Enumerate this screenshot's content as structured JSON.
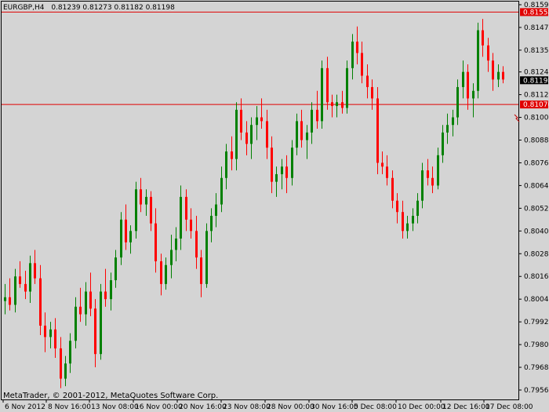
{
  "header": {
    "symbol": "EURGBP,H4",
    "ohlc": "0.81239 0.81273 0.81182 0.81198"
  },
  "copyright": "MetaTrader, © 2001-2012, MetaQuotes Software Corp.",
  "colors": {
    "background": "#d4d4d4",
    "bull": "#008000",
    "bear": "#ff0000",
    "line": "#e00000",
    "axis": "#000000",
    "price_tag": "#000000",
    "level_tag": "#e00000"
  },
  "chart_data": {
    "type": "candlestick",
    "symbol": "EURGBP",
    "timeframe": "H4",
    "ylim": [
      0.7956,
      0.81595
    ],
    "yticks": [
      "0.81595",
      "0.81475",
      "0.81355",
      "0.81240",
      "0.81120",
      "0.81000",
      "0.80880",
      "0.80760",
      "0.80640",
      "0.80520",
      "0.80400",
      "0.80280",
      "0.80160",
      "0.80040",
      "0.79920",
      "0.79800",
      "0.79680",
      "0.79560"
    ],
    "xticks": [
      "6 Nov 2012",
      "8 Nov 16:00",
      "13 Nov 08:00",
      "16 Nov 00:00",
      "20 Nov 16:00",
      "23 Nov 08:00",
      "28 Nov 00:00",
      "30 Nov 16:00",
      "5 Dec 08:00",
      "10 Dec 00:00",
      "12 Dec 16:00",
      "17 Dec 08:00"
    ],
    "current_price": "0.81198",
    "horizontal_lines": [
      {
        "price": "0.81558"
      },
      {
        "price": "0.81070"
      }
    ],
    "candles": [
      [
        0.8003,
        0.8012,
        0.7996,
        0.8005
      ],
      [
        0.8005,
        0.8015,
        0.7998,
        0.8001
      ],
      [
        0.8001,
        0.802,
        0.7997,
        0.8016
      ],
      [
        0.8016,
        0.8024,
        0.801,
        0.8012
      ],
      [
        0.8012,
        0.8019,
        0.8004,
        0.8008
      ],
      [
        0.8008,
        0.8027,
        0.8002,
        0.8023
      ],
      [
        0.8023,
        0.803,
        0.8012,
        0.8015
      ],
      [
        0.8015,
        0.8022,
        0.7985,
        0.799
      ],
      [
        0.799,
        0.7997,
        0.7976,
        0.7984
      ],
      [
        0.7984,
        0.7992,
        0.7978,
        0.7988
      ],
      [
        0.7988,
        0.7994,
        0.7973,
        0.7978
      ],
      [
        0.7978,
        0.7984,
        0.7957,
        0.7962
      ],
      [
        0.7962,
        0.7974,
        0.7958,
        0.797
      ],
      [
        0.797,
        0.7986,
        0.7965,
        0.7982
      ],
      [
        0.7982,
        0.8005,
        0.7978,
        0.8
      ],
      [
        0.8,
        0.801,
        0.7992,
        0.7996
      ],
      [
        0.7996,
        0.8013,
        0.799,
        0.8008
      ],
      [
        0.8008,
        0.8018,
        0.7995,
        0.7999
      ],
      [
        0.7999,
        0.8004,
        0.7968,
        0.7975
      ],
      [
        0.7975,
        0.8012,
        0.7972,
        0.8008
      ],
      [
        0.8008,
        0.802,
        0.8,
        0.8004
      ],
      [
        0.8004,
        0.8018,
        0.7998,
        0.8014
      ],
      [
        0.8014,
        0.803,
        0.801,
        0.8026
      ],
      [
        0.8026,
        0.805,
        0.8022,
        0.8046
      ],
      [
        0.8046,
        0.8054,
        0.803,
        0.8034
      ],
      [
        0.8034,
        0.8043,
        0.8028,
        0.804
      ],
      [
        0.804,
        0.8066,
        0.8036,
        0.8062
      ],
      [
        0.8062,
        0.8068,
        0.805,
        0.8054
      ],
      [
        0.8054,
        0.8062,
        0.8048,
        0.8058
      ],
      [
        0.8058,
        0.8061,
        0.804,
        0.8044
      ],
      [
        0.8044,
        0.8052,
        0.8018,
        0.8024
      ],
      [
        0.8024,
        0.8028,
        0.8006,
        0.8012
      ],
      [
        0.8012,
        0.8026,
        0.8009,
        0.8022
      ],
      [
        0.8022,
        0.8038,
        0.8015,
        0.803
      ],
      [
        0.803,
        0.8042,
        0.8024,
        0.8036
      ],
      [
        0.8036,
        0.8064,
        0.803,
        0.8058
      ],
      [
        0.8058,
        0.8062,
        0.804,
        0.8046
      ],
      [
        0.8046,
        0.8052,
        0.8036,
        0.804
      ],
      [
        0.804,
        0.8048,
        0.802,
        0.8026
      ],
      [
        0.8026,
        0.803,
        0.8005,
        0.8012
      ],
      [
        0.8012,
        0.8044,
        0.801,
        0.804
      ],
      [
        0.804,
        0.8052,
        0.8034,
        0.8048
      ],
      [
        0.8048,
        0.806,
        0.8042,
        0.8054
      ],
      [
        0.8054,
        0.8074,
        0.805,
        0.8068
      ],
      [
        0.8068,
        0.8086,
        0.8062,
        0.8082
      ],
      [
        0.8082,
        0.809,
        0.8072,
        0.8078
      ],
      [
        0.8078,
        0.8108,
        0.8072,
        0.8104
      ],
      [
        0.8104,
        0.811,
        0.8088,
        0.8092
      ],
      [
        0.8092,
        0.8098,
        0.808,
        0.8086
      ],
      [
        0.8086,
        0.81,
        0.8078,
        0.8096
      ],
      [
        0.8096,
        0.8106,
        0.8088,
        0.81
      ],
      [
        0.81,
        0.811,
        0.8094,
        0.8098
      ],
      [
        0.8098,
        0.8104,
        0.8078,
        0.8084
      ],
      [
        0.8084,
        0.809,
        0.806,
        0.8066
      ],
      [
        0.8066,
        0.8074,
        0.8058,
        0.807
      ],
      [
        0.807,
        0.8078,
        0.8062,
        0.8074
      ],
      [
        0.8074,
        0.808,
        0.806,
        0.8068
      ],
      [
        0.8068,
        0.8088,
        0.8064,
        0.8084
      ],
      [
        0.8084,
        0.8102,
        0.808,
        0.8098
      ],
      [
        0.8098,
        0.8104,
        0.8084,
        0.8088
      ],
      [
        0.8088,
        0.8096,
        0.8078,
        0.8092
      ],
      [
        0.8092,
        0.8108,
        0.8086,
        0.8104
      ],
      [
        0.8104,
        0.8114,
        0.8094,
        0.8098
      ],
      [
        0.8098,
        0.813,
        0.8094,
        0.8126
      ],
      [
        0.8126,
        0.8132,
        0.8104,
        0.8108
      ],
      [
        0.8108,
        0.8112,
        0.81,
        0.8106
      ],
      [
        0.8106,
        0.8112,
        0.81,
        0.8108
      ],
      [
        0.8108,
        0.8114,
        0.8102,
        0.8105
      ],
      [
        0.8105,
        0.813,
        0.8102,
        0.8126
      ],
      [
        0.8126,
        0.8144,
        0.812,
        0.814
      ],
      [
        0.814,
        0.8148,
        0.8128,
        0.8134
      ],
      [
        0.8134,
        0.814,
        0.8118,
        0.8122
      ],
      [
        0.8122,
        0.8128,
        0.811,
        0.8116
      ],
      [
        0.8116,
        0.812,
        0.8104,
        0.811
      ],
      [
        0.811,
        0.8116,
        0.807,
        0.8076
      ],
      [
        0.8076,
        0.8082,
        0.807,
        0.8074
      ],
      [
        0.8074,
        0.808,
        0.8064,
        0.8068
      ],
      [
        0.8068,
        0.8072,
        0.8052,
        0.8056
      ],
      [
        0.8056,
        0.806,
        0.8044,
        0.805
      ],
      [
        0.805,
        0.8056,
        0.8036,
        0.804
      ],
      [
        0.804,
        0.8048,
        0.8036,
        0.8044
      ],
      [
        0.8044,
        0.8052,
        0.804,
        0.8048
      ],
      [
        0.8048,
        0.806,
        0.8044,
        0.8056
      ],
      [
        0.8056,
        0.8076,
        0.8052,
        0.8072
      ],
      [
        0.8072,
        0.8078,
        0.8064,
        0.8068
      ],
      [
        0.8068,
        0.8074,
        0.806,
        0.8064
      ],
      [
        0.8064,
        0.8084,
        0.8062,
        0.808
      ],
      [
        0.808,
        0.8096,
        0.8076,
        0.8092
      ],
      [
        0.8092,
        0.8102,
        0.8086,
        0.8096
      ],
      [
        0.8096,
        0.8104,
        0.809,
        0.81
      ],
      [
        0.81,
        0.812,
        0.8096,
        0.8116
      ],
      [
        0.8116,
        0.813,
        0.811,
        0.8124
      ],
      [
        0.8124,
        0.8128,
        0.8104,
        0.811
      ],
      [
        0.811,
        0.8118,
        0.81,
        0.8114
      ],
      [
        0.8114,
        0.815,
        0.811,
        0.8146
      ],
      [
        0.8146,
        0.8152,
        0.8132,
        0.8138
      ],
      [
        0.8138,
        0.8142,
        0.8124,
        0.813
      ],
      [
        0.813,
        0.8134,
        0.8114,
        0.812
      ],
      [
        0.812,
        0.8128,
        0.8116,
        0.8124
      ],
      [
        0.8124,
        0.8127,
        0.8118,
        0.812
      ]
    ]
  }
}
